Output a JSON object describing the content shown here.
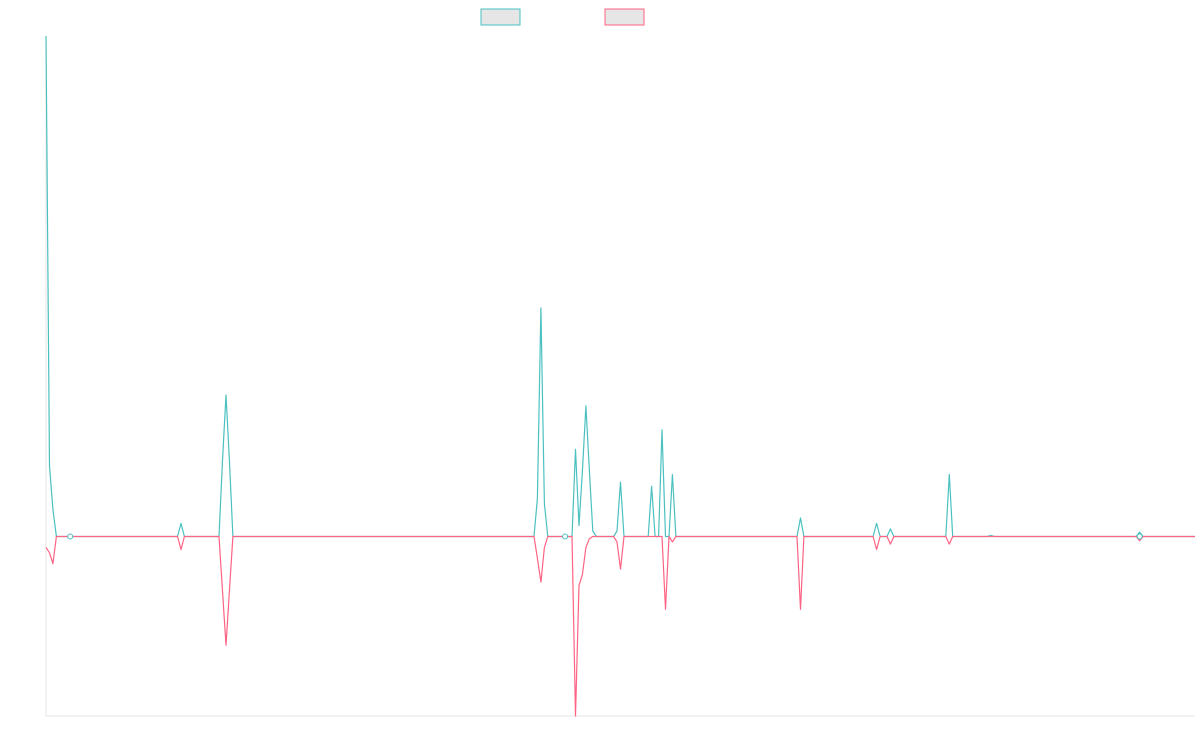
{
  "chart_data": {
    "type": "line",
    "title": "",
    "xlabel": "",
    "ylabel": "",
    "grid": false,
    "legend_position": "top",
    "xlim": [
      0,
      332
    ],
    "ylim": [
      -1.65,
      4.6
    ],
    "baseline": 0,
    "series": [
      {
        "name": "",
        "color": "#4bc0c0",
        "legend_fill": "#e6e6e6",
        "points": [
          [
            0,
            4.6
          ],
          [
            1,
            0.65
          ],
          [
            2,
            0.25
          ],
          [
            3,
            0
          ],
          [
            4,
            0
          ],
          [
            5,
            0
          ],
          [
            6,
            0
          ],
          [
            7,
            0
          ],
          [
            8,
            0
          ],
          [
            38,
            0
          ],
          [
            39,
            0.12
          ],
          [
            40,
            0
          ],
          [
            50,
            0
          ],
          [
            51,
            0.7
          ],
          [
            52,
            1.3
          ],
          [
            53,
            0.7
          ],
          [
            54,
            0
          ],
          [
            141,
            0
          ],
          [
            142,
            0.35
          ],
          [
            143,
            2.1
          ],
          [
            144,
            0.3
          ],
          [
            145,
            0
          ],
          [
            152,
            0
          ],
          [
            153,
            0.8
          ],
          [
            154,
            0.1
          ],
          [
            155,
            0.6
          ],
          [
            156,
            1.2
          ],
          [
            157,
            0.6
          ],
          [
            158,
            0.05
          ],
          [
            159,
            0
          ],
          [
            164,
            0
          ],
          [
            165,
            0.05
          ],
          [
            166,
            0.5
          ],
          [
            167,
            0
          ],
          [
            174,
            0
          ],
          [
            175,
            0.46
          ],
          [
            176,
            0
          ],
          [
            177,
            0
          ],
          [
            178,
            0.98
          ],
          [
            179,
            0
          ],
          [
            180,
            0
          ],
          [
            181,
            0.57
          ],
          [
            182,
            0
          ],
          [
            217,
            0
          ],
          [
            218,
            0.17
          ],
          [
            219,
            0
          ],
          [
            239,
            0
          ],
          [
            240,
            0.12
          ],
          [
            241,
            0
          ],
          [
            243,
            0
          ],
          [
            244,
            0.07
          ],
          [
            245,
            0
          ],
          [
            260,
            0
          ],
          [
            261,
            0.57
          ],
          [
            262,
            0
          ],
          [
            272,
            0
          ],
          [
            273,
            0.01
          ],
          [
            274,
            0
          ],
          [
            315,
            0
          ],
          [
            316,
            0.04
          ],
          [
            317,
            0
          ],
          [
            332,
            0
          ]
        ]
      },
      {
        "name": "",
        "color": "#ff6384",
        "legend_fill": "#e6e6e6",
        "points": [
          [
            0,
            -0.1
          ],
          [
            1,
            -0.15
          ],
          [
            2,
            -0.25
          ],
          [
            3,
            0
          ],
          [
            4,
            0
          ],
          [
            5,
            0
          ],
          [
            6,
            0
          ],
          [
            7,
            0
          ],
          [
            8,
            0
          ],
          [
            38,
            0
          ],
          [
            39,
            -0.12
          ],
          [
            40,
            0
          ],
          [
            50,
            0
          ],
          [
            51,
            -0.5
          ],
          [
            52,
            -1.0
          ],
          [
            53,
            -0.5
          ],
          [
            54,
            0
          ],
          [
            141,
            0
          ],
          [
            142,
            -0.2
          ],
          [
            143,
            -0.42
          ],
          [
            144,
            -0.1
          ],
          [
            145,
            0
          ],
          [
            152,
            0
          ],
          [
            153,
            -1.65
          ],
          [
            154,
            -0.45
          ],
          [
            155,
            -0.35
          ],
          [
            156,
            -0.1
          ],
          [
            157,
            -0.02
          ],
          [
            158,
            0
          ],
          [
            164,
            0
          ],
          [
            165,
            -0.05
          ],
          [
            166,
            -0.3
          ],
          [
            167,
            0
          ],
          [
            178,
            0
          ],
          [
            179,
            -0.67
          ],
          [
            180,
            0
          ],
          [
            181,
            -0.05
          ],
          [
            182,
            0
          ],
          [
            217,
            0
          ],
          [
            218,
            -0.67
          ],
          [
            219,
            0
          ],
          [
            239,
            0
          ],
          [
            240,
            -0.12
          ],
          [
            241,
            0
          ],
          [
            243,
            0
          ],
          [
            244,
            -0.07
          ],
          [
            245,
            0
          ],
          [
            260,
            0
          ],
          [
            261,
            -0.07
          ],
          [
            262,
            0
          ],
          [
            315,
            0
          ],
          [
            316,
            -0.04
          ],
          [
            317,
            0
          ],
          [
            332,
            0
          ]
        ]
      }
    ],
    "markers": [
      {
        "x": 7,
        "y": 0
      },
      {
        "x": 150,
        "y": 0
      },
      {
        "x": 316,
        "y": 0
      }
    ]
  }
}
